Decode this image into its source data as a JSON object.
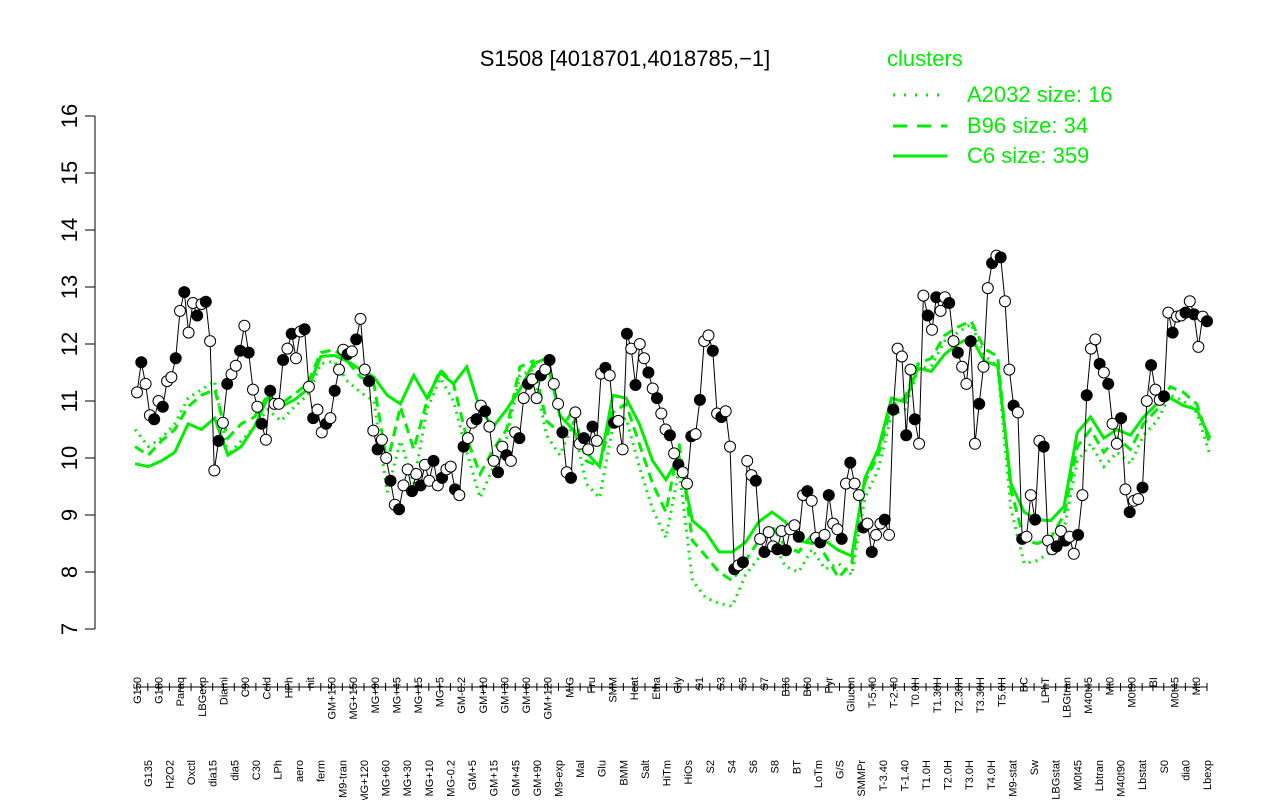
{
  "chart_data": {
    "type": "line",
    "title": "S1508 [4018701,4018785,−1]",
    "xlabel": "",
    "ylabel": "",
    "ylim": [
      7,
      16
    ],
    "yticks": [
      "7",
      "8",
      "9",
      "10",
      "11",
      "12",
      "13",
      "14",
      "15",
      "16"
    ],
    "legend": {
      "title": "clusters",
      "placement": "top-right",
      "entries": [
        {
          "label": "A2032 size: 16",
          "style": "dotted"
        },
        {
          "label": "B96 size: 34",
          "style": "dashed"
        },
        {
          "label": "C6 size: 359",
          "style": "solid"
        }
      ]
    },
    "colors": {
      "cluster_lines": "#00ee00",
      "point_outline": "#000000",
      "filled_point": "#000000",
      "open_point": "#ffffff",
      "profile_line": "#000000"
    },
    "x_tick_labels_top": [
      "G150",
      "G135",
      "G180",
      "H2O2",
      "Paraq",
      "Oxctl",
      "LBGexp",
      "dia15",
      "Diami",
      "dia5",
      "C90",
      "C30",
      "Cold",
      "LPh",
      "HPh",
      "aero",
      "nit",
      "ferm",
      "GM+150",
      "M9-tran",
      "MG+150",
      "MG+120",
      "MG+90",
      "MG+60",
      "MG+45",
      "MG+30",
      "MG+15",
      "MG+10",
      "MG+5",
      "MG-0.2",
      "GM-0.2",
      "GM+5",
      "GM+10",
      "GM+15",
      "GM+30",
      "GM+45",
      "GM+60",
      "GM+90",
      "GM+120",
      "M9-exp",
      "M/G",
      "Mal",
      "Fru",
      "Glu",
      "SMM",
      "BMM",
      "Heat",
      "Salt",
      "Etha",
      "HiTm",
      "Gly",
      "HiOs",
      "S1",
      "S2",
      "S3",
      "S4",
      "S5",
      "S6",
      "S7",
      "S8",
      "B36",
      "BT",
      "B60",
      "LoTm",
      "Pyr",
      "G/S",
      "Glucon",
      "SMMPr",
      "T-5.40",
      "T-3.40",
      "T-2.40",
      "T-1.40",
      "T0.0H",
      "T1.0H",
      "T1.30H",
      "T2.0H",
      "T2.30H",
      "T3.0H",
      "T3.30H",
      "T4.0H",
      "T5.0H",
      "M9-stat",
      "BC",
      "Sw",
      "LPhT",
      "LBGstat",
      "LBGtran",
      "M0t45",
      "M40t45",
      "Lbtran",
      "Mt0",
      "M40t90",
      "M0t90",
      "Lbstat",
      "BI",
      "S0",
      "M0t45",
      "dia0",
      "Mt0",
      "Lbexp"
    ],
    "series": [
      {
        "values": [
          11.15,
          11.68,
          11.3,
          10.75,
          10.68,
          11.0,
          10.9,
          11.35,
          11.42,
          11.75,
          12.58,
          12.91,
          12.2,
          12.72,
          12.5,
          12.7,
          12.74,
          12.05,
          9.78,
          10.3,
          10.62,
          11.3,
          11.47,
          11.62,
          11.88,
          12.32,
          11.85,
          11.2,
          10.9,
          10.6,
          10.32,
          11.18,
          10.95,
          10.95,
          11.72,
          11.92,
          12.18,
          11.75,
          12.22,
          12.26,
          11.25,
          10.7,
          10.85,
          10.45,
          10.6,
          10.7,
          11.18,
          11.55,
          11.9,
          11.82,
          11.87,
          12.08,
          12.44,
          11.55,
          11.35,
          10.48,
          10.15,
          10.32,
          10.0,
          9.6,
          9.18,
          9.1,
          9.52,
          9.8,
          9.42,
          9.72,
          9.52,
          9.88,
          9.6,
          9.95,
          9.52,
          9.65,
          9.8,
          9.85,
          9.45,
          9.35,
          10.2,
          10.35,
          10.62,
          10.68,
          10.92,
          10.82,
          10.55,
          9.95,
          9.75,
          10.2,
          10.05,
          9.95,
          10.45,
          10.35,
          11.05,
          11.3,
          11.38,
          11.05,
          11.45,
          11.55,
          11.72,
          11.3,
          10.95,
          10.45,
          9.75,
          9.65,
          10.8,
          10.25,
          10.35,
          10.15,
          10.55,
          10.3,
          11.48,
          11.58,
          11.45,
          10.62,
          10.65,
          10.15,
          12.18,
          11.92,
          11.28,
          12.0,
          11.75,
          11.5,
          11.22,
          11.05,
          10.78,
          10.5,
          10.4,
          10.08,
          9.88,
          9.75,
          9.55,
          10.38,
          10.42,
          11.02,
          12.05,
          12.15,
          11.88,
          10.78,
          10.72,
          10.82,
          10.2,
          8.05,
          8.12,
          8.17,
          9.95,
          9.7,
          9.6,
          8.58,
          8.35,
          8.7,
          8.45,
          8.4,
          8.72,
          8.38,
          8.75,
          8.82,
          8.62,
          9.35,
          9.42,
          9.25,
          8.6,
          8.52,
          8.65,
          9.35,
          8.85,
          8.75,
          8.58,
          9.55,
          9.92,
          9.55,
          9.35,
          8.78,
          8.85,
          8.35,
          8.65,
          8.85,
          8.92,
          8.65,
          10.85,
          11.92,
          11.78,
          10.4,
          11.55,
          10.68,
          10.25,
          12.85,
          12.5,
          12.25,
          12.82,
          12.58,
          12.82,
          12.72,
          12.05,
          11.85,
          11.6,
          11.3,
          12.05,
          10.25,
          10.95,
          11.6,
          12.98,
          13.42,
          13.55,
          13.52,
          12.75,
          11.55,
          10.92,
          10.8,
          8.58,
          8.62,
          9.35,
          8.92,
          10.3,
          10.2,
          8.55,
          8.4,
          8.45,
          8.72,
          8.55,
          8.62,
          8.32,
          8.65,
          9.35,
          11.1,
          11.92,
          12.08,
          11.65,
          11.5,
          11.3,
          10.6,
          10.25,
          10.7,
          9.45,
          9.05,
          9.25,
          9.28,
          9.48,
          11.0,
          11.63,
          11.2,
          11.02,
          11.08,
          12.55,
          12.2,
          12.48,
          12.5,
          12.55,
          12.75,
          12.52,
          11.95,
          12.48,
          12.4
        ],
        "filled_pattern": "mixed open/filled markers per condition"
      },
      {
        "name": "C6 size: 359",
        "style": "solid",
        "values": [
          9.9,
          9.85,
          9.95,
          10.1,
          10.6,
          10.5,
          10.7,
          10.05,
          10.2,
          10.55,
          11.05,
          10.9,
          11.02,
          11.2,
          11.78,
          11.8,
          11.7,
          11.55,
          11.42,
          11.1,
          10.95,
          11.45,
          11.05,
          11.5,
          11.3,
          11.6,
          10.85,
          10.55,
          10.85,
          11.2,
          11.65,
          11.75,
          10.75,
          10.5,
          10.1,
          9.85,
          11.1,
          11.05,
          10.6,
          9.95,
          9.62,
          10.02,
          8.9,
          8.7,
          8.35,
          8.35,
          8.52,
          8.88,
          9.05,
          8.88,
          8.55,
          8.5,
          8.55,
          8.38,
          8.28,
          9.65,
          10.15,
          11.05,
          10.98,
          11.58,
          11.52,
          11.82,
          12.0,
          12.12,
          11.7,
          11.62,
          9.55,
          9.05,
          8.92,
          8.9,
          9.15,
          10.45,
          10.72,
          10.35,
          10.5,
          10.4,
          10.72,
          10.95,
          11.05,
          10.92,
          10.85,
          10.35
        ]
      },
      {
        "name": "B96 size: 34",
        "style": "dashed",
        "values": [
          10.2,
          10.05,
          10.3,
          10.5,
          10.9,
          11.1,
          11.2,
          10.35,
          10.6,
          10.72,
          11.1,
          10.95,
          11.12,
          11.3,
          11.85,
          11.9,
          11.7,
          11.42,
          11.3,
          9.9,
          10.9,
          10.15,
          11.0,
          11.55,
          11.3,
          10.35,
          9.72,
          10.15,
          10.5,
          11.6,
          11.7,
          10.65,
          10.45,
          10.85,
          9.95,
          9.85,
          10.8,
          10.95,
          10.25,
          9.55,
          9.05,
          10.25,
          8.55,
          8.28,
          8.0,
          7.85,
          8.2,
          8.55,
          8.8,
          8.45,
          8.35,
          8.65,
          8.3,
          7.9,
          8.15,
          9.58,
          10.05,
          10.92,
          11.05,
          11.65,
          11.75,
          12.15,
          12.3,
          12.4,
          11.92,
          11.78,
          9.45,
          8.55,
          8.5,
          8.6,
          9.0,
          10.2,
          10.5,
          10.1,
          10.35,
          10.15,
          10.6,
          10.85,
          11.25,
          11.15,
          10.95,
          10.25
        ]
      },
      {
        "name": "A2032 size: 16",
        "style": "dotted",
        "values": [
          10.5,
          10.2,
          10.35,
          10.6,
          11.05,
          11.2,
          11.35,
          10.05,
          10.3,
          10.55,
          10.85,
          10.65,
          10.9,
          11.1,
          11.65,
          11.7,
          11.35,
          11.15,
          11.0,
          9.4,
          10.3,
          9.55,
          10.85,
          11.4,
          11.0,
          10.1,
          9.3,
          9.85,
          10.35,
          11.45,
          11.55,
          10.4,
          10.05,
          10.6,
          9.55,
          9.3,
          10.55,
          10.7,
          9.85,
          9.1,
          8.6,
          9.8,
          7.85,
          7.55,
          7.45,
          7.4,
          7.95,
          8.25,
          8.55,
          8.1,
          8.0,
          8.4,
          8.05,
          8.15,
          7.95,
          9.3,
          9.8,
          10.75,
          10.85,
          11.55,
          11.62,
          12.05,
          12.2,
          12.35,
          11.8,
          11.6,
          9.1,
          8.15,
          8.2,
          8.35,
          8.75,
          9.95,
          10.25,
          9.85,
          10.1,
          9.9,
          10.4,
          10.65,
          11.1,
          11.0,
          10.8,
          10.05
        ]
      }
    ]
  }
}
